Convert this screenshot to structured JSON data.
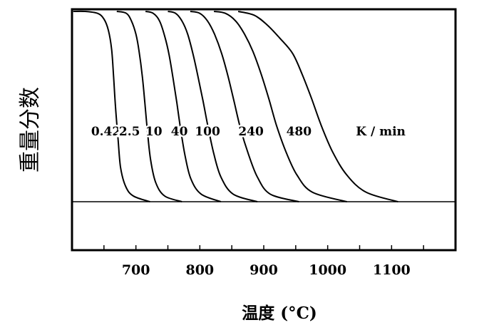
{
  "chart_data": {
    "type": "line",
    "xlabel": "温度 (°C)",
    "ylabel": "重量分数",
    "xlim": [
      600,
      1200
    ],
    "xticks": [
      700,
      800,
      900,
      1000,
      1100
    ],
    "rate_unit_label": "K / min",
    "grid": false,
    "legend": "none",
    "baseline_visible": true,
    "series": [
      {
        "name": "0.42",
        "x": [
          602,
          620,
          640,
          650,
          657,
          662,
          665,
          668,
          672,
          676,
          684,
          696,
          722
        ],
        "y": [
          1.0,
          1.0,
          0.99,
          0.96,
          0.9,
          0.8,
          0.66,
          0.5,
          0.33,
          0.18,
          0.08,
          0.03,
          0.0
        ]
      },
      {
        "name": "2.5",
        "x": [
          670,
          685,
          693,
          700,
          705,
          710,
          714,
          718,
          723,
          731,
          745,
          772
        ],
        "y": [
          1.0,
          0.99,
          0.95,
          0.88,
          0.79,
          0.66,
          0.52,
          0.37,
          0.22,
          0.1,
          0.03,
          0.0
        ]
      },
      {
        "name": "10",
        "x": [
          715,
          727,
          737,
          745,
          752,
          758,
          764,
          770,
          777,
          786,
          802,
          833
        ],
        "y": [
          1.0,
          0.99,
          0.95,
          0.87,
          0.77,
          0.65,
          0.52,
          0.38,
          0.24,
          0.12,
          0.04,
          0.0
        ]
      },
      {
        "name": "40",
        "x": [
          750,
          762,
          772,
          781,
          789,
          797,
          805,
          813,
          822,
          833,
          852,
          890
        ],
        "y": [
          1.0,
          0.99,
          0.95,
          0.88,
          0.78,
          0.66,
          0.53,
          0.39,
          0.25,
          0.13,
          0.04,
          0.0
        ]
      },
      {
        "name": "100",
        "x": [
          785,
          800,
          812,
          823,
          834,
          844,
          854,
          864,
          876,
          890,
          910,
          955
        ],
        "y": [
          1.0,
          0.99,
          0.95,
          0.88,
          0.78,
          0.66,
          0.52,
          0.38,
          0.25,
          0.13,
          0.04,
          0.0
        ]
      },
      {
        "name": "240",
        "x": [
          822,
          840,
          856,
          870,
          883,
          896,
          908,
          920,
          935,
          952,
          976,
          1030
        ],
        "y": [
          1.0,
          0.99,
          0.95,
          0.88,
          0.79,
          0.67,
          0.54,
          0.4,
          0.26,
          0.14,
          0.05,
          0.0
        ]
      },
      {
        "name": "480",
        "x": [
          860,
          885,
          905,
          925,
          945,
          960,
          975,
          990,
          1008,
          1030,
          1060,
          1110
        ],
        "y": [
          1.0,
          0.98,
          0.93,
          0.86,
          0.78,
          0.67,
          0.54,
          0.4,
          0.26,
          0.14,
          0.05,
          0.0
        ]
      }
    ],
    "curve_label_y": 0.37,
    "curve_label_x": [
      653,
      690,
      728,
      768,
      812,
      880,
      955
    ],
    "unit_label_x": [
      1044,
      1122
    ]
  }
}
